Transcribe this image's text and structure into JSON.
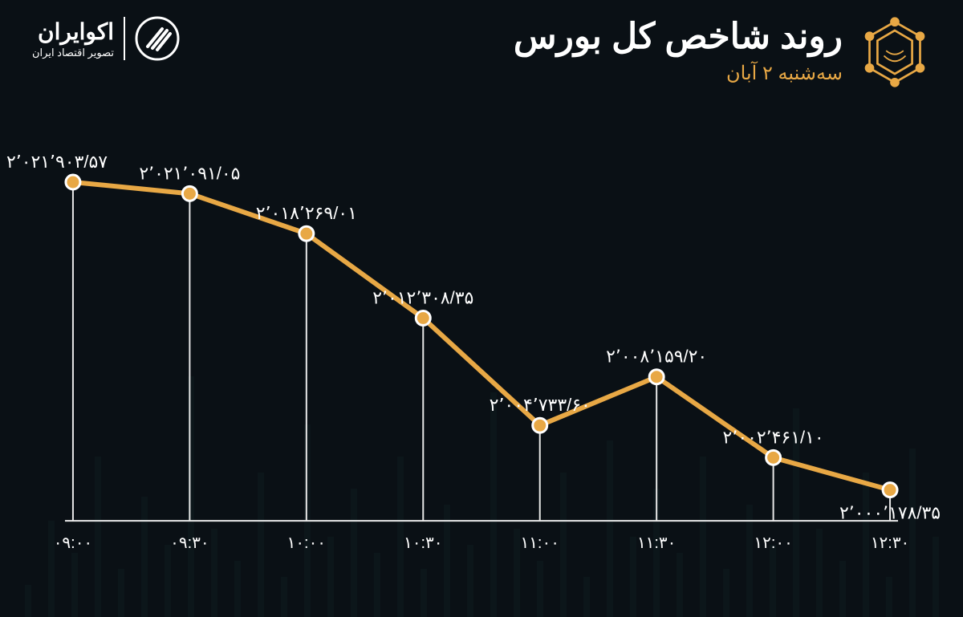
{
  "header": {
    "title": "روند شاخص کل بورس",
    "subtitle": "سه‌شنبه ۲ آبان"
  },
  "brand": {
    "name": "اکوایران",
    "tagline": "تصویر اقتصاد ایران"
  },
  "colors": {
    "background": "#0a1015",
    "line": "#e8a845",
    "point_fill": "#e8a845",
    "point_stroke": "#ffffff",
    "drop_line": "#e8e8e8",
    "text": "#ffffff",
    "subtitle": "#e8a845",
    "bg_bars": "#1a3a3a"
  },
  "chart": {
    "type": "line",
    "line_width": 6,
    "point_radius": 9,
    "point_stroke_width": 3,
    "ylim_min": 1998000,
    "ylim_max": 2024000,
    "x_labels": [
      "۰۹:۰۰",
      "۰۹:۳۰",
      "۱۰:۰۰",
      "۱۰:۳۰",
      "۱۱:۰۰",
      "۱۱:۳۰",
      "۱۲:۰۰",
      "۱۲:۳۰"
    ],
    "values": [
      2021903.57,
      2021091.05,
      2018269.01,
      2012308.35,
      2004733.6,
      2008159.2,
      2002461.1,
      2000178.35
    ],
    "value_labels": [
      "۲٬۰۲۱٬۹۰۳/۵۷",
      "۲٬۰۲۱٬۰۹۱/۰۵",
      "۲٬۰۱۸٬۲۶۹/۰۱",
      "۲٬۰۱۲٬۳۰۸/۳۵",
      "۲٬۰۰۴٬۷۳۳/۶۰",
      "۲٬۰۰۸٬۱۵۹/۲۰",
      "۲٬۰۰۲٬۴۶۱/۱۰",
      "۲٬۰۰۰٬۱۷۸/۳۵"
    ],
    "label_fontsize": 22,
    "axis_fontsize": 20
  },
  "bg_bars_heights": [
    40,
    120,
    80,
    200,
    60,
    150,
    90,
    300,
    110,
    70,
    180,
    50,
    240,
    100,
    160,
    80,
    200,
    60,
    140,
    90,
    280,
    110,
    70,
    180,
    50,
    220,
    100,
    160,
    80,
    200,
    60,
    140,
    90,
    260,
    110,
    70,
    180,
    50,
    210,
    100
  ]
}
